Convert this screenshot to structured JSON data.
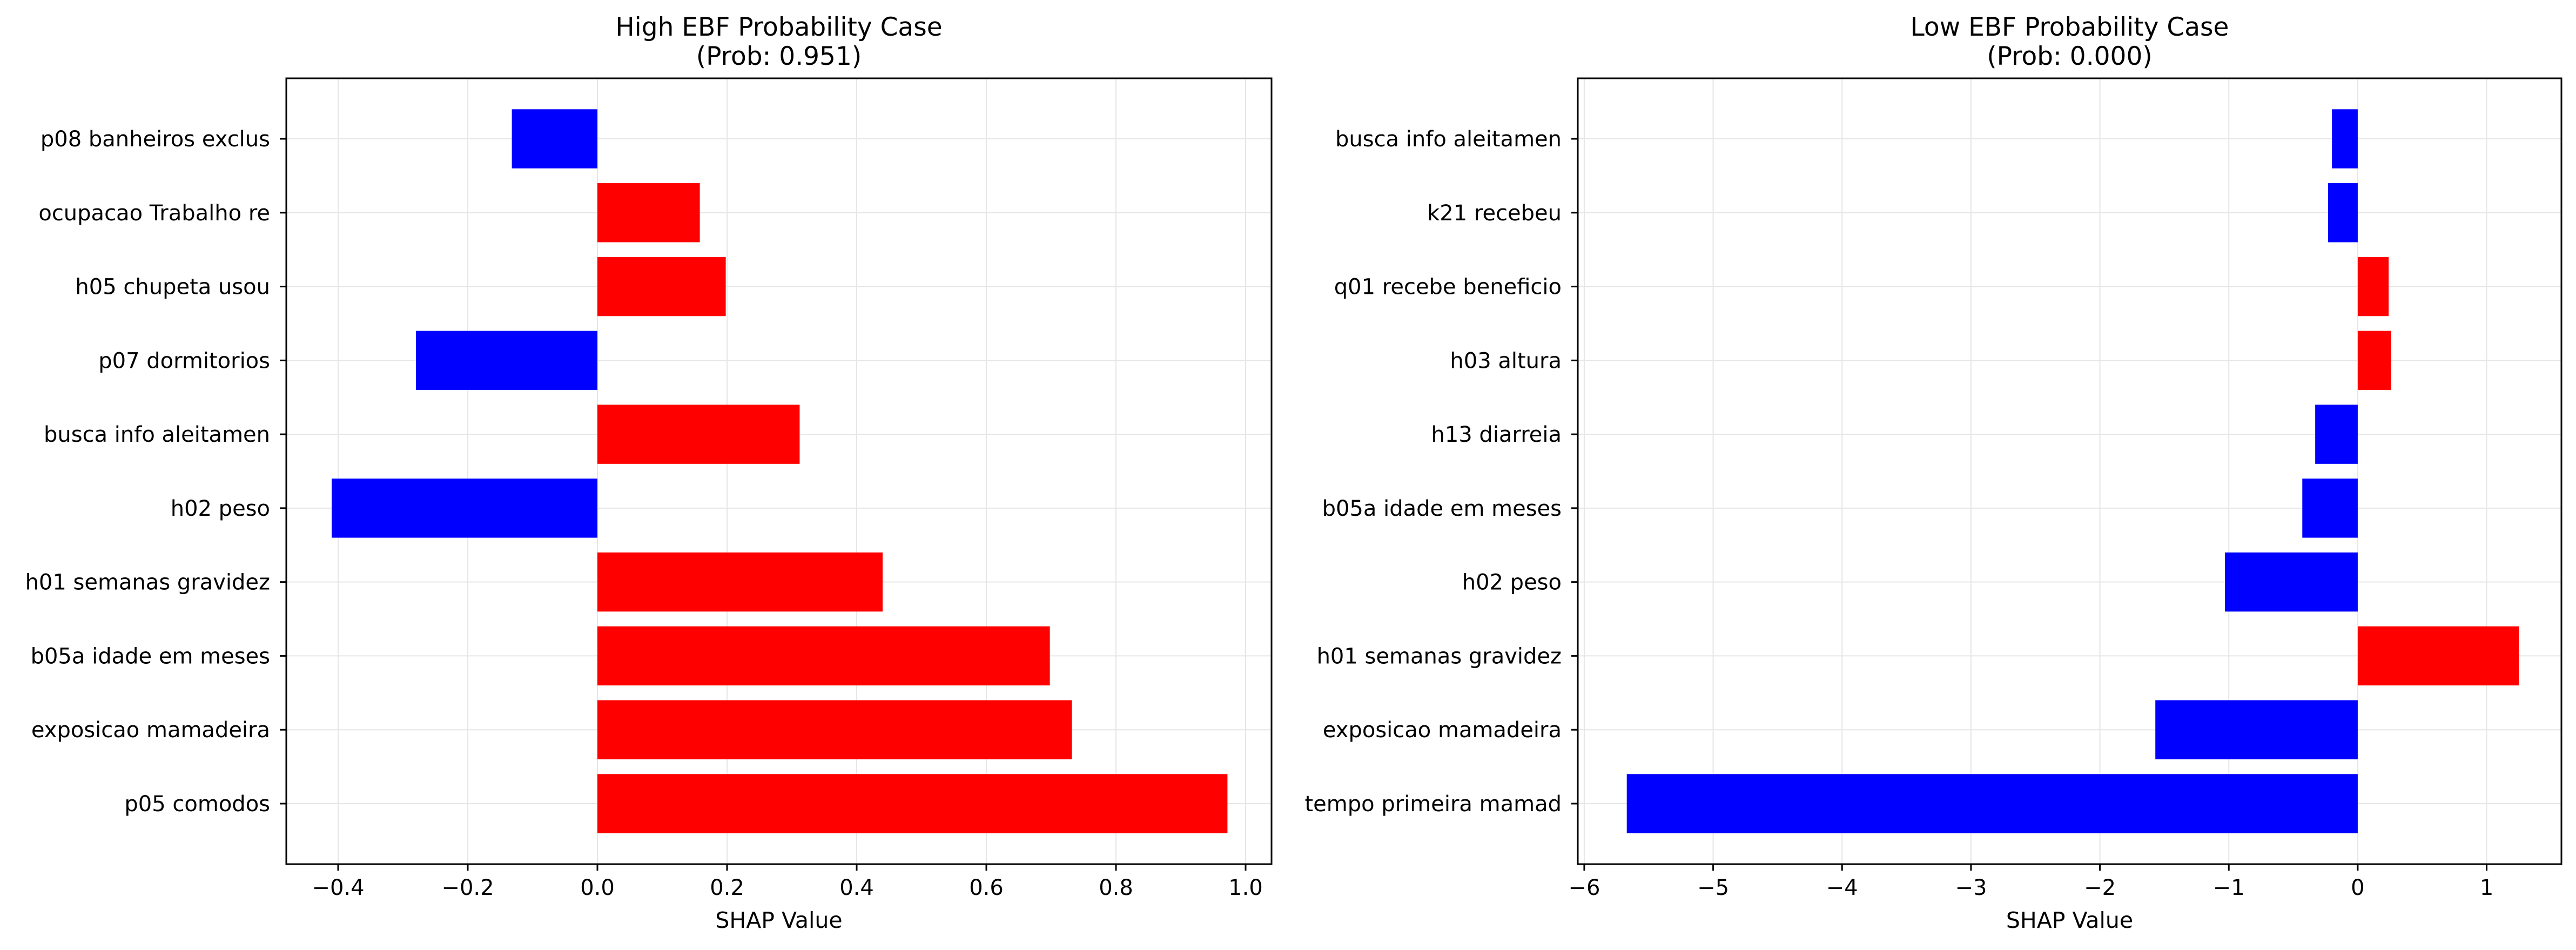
{
  "colors": {
    "positive": "#ff0000",
    "negative": "#0000ff",
    "grid": "#e6e6e6",
    "axis": "#000000"
  },
  "chart_data": [
    {
      "type": "bar",
      "orientation": "horizontal",
      "title": "High EBF Probability Case",
      "subtitle": "(Prob: 0.951)",
      "xlabel": "SHAP Value",
      "ylabel": "",
      "xlim": [
        -0.48,
        1.04
      ],
      "xticks": [
        -0.4,
        -0.2,
        0.0,
        0.2,
        0.4,
        0.6,
        0.8,
        1.0
      ],
      "xtick_labels": [
        "−0.4",
        "−0.2",
        "0.0",
        "0.2",
        "0.4",
        "0.6",
        "0.8",
        "1.0"
      ],
      "grid": true,
      "categories": [
        "p08 banheiros exclus",
        "ocupacao Trabalho re",
        "h05 chupeta usou",
        "p07 dormitorios",
        "busca info aleitamen",
        "h02 peso",
        "h01 semanas gravidez",
        "b05a idade em meses",
        "exposicao mamadeira",
        "p05 comodos"
      ],
      "values": [
        -0.132,
        0.158,
        0.198,
        -0.28,
        0.312,
        -0.41,
        0.44,
        0.698,
        0.732,
        0.972
      ]
    },
    {
      "type": "bar",
      "orientation": "horizontal",
      "title": "Low EBF Probability Case",
      "subtitle": "(Prob: 0.000)",
      "xlabel": "SHAP Value",
      "ylabel": "",
      "xlim": [
        -6.05,
        1.58
      ],
      "xticks": [
        -6,
        -5,
        -4,
        -3,
        -2,
        -1,
        0,
        1
      ],
      "xtick_labels": [
        "−6",
        "−5",
        "−4",
        "−3",
        "−2",
        "−1",
        "0",
        "1"
      ],
      "grid": true,
      "categories": [
        "busca info aleitamen",
        "k21 recebeu",
        "q01 recebe beneficio",
        "h03 altura",
        "h13 diarreia",
        "b05a idade em meses",
        "h02 peso",
        "h01 semanas gravidez",
        "exposicao mamadeira",
        "tempo primeira mamad"
      ],
      "values": [
        -0.2,
        -0.23,
        0.24,
        0.26,
        -0.33,
        -0.43,
        -1.03,
        1.25,
        -1.57,
        -5.67
      ]
    }
  ]
}
